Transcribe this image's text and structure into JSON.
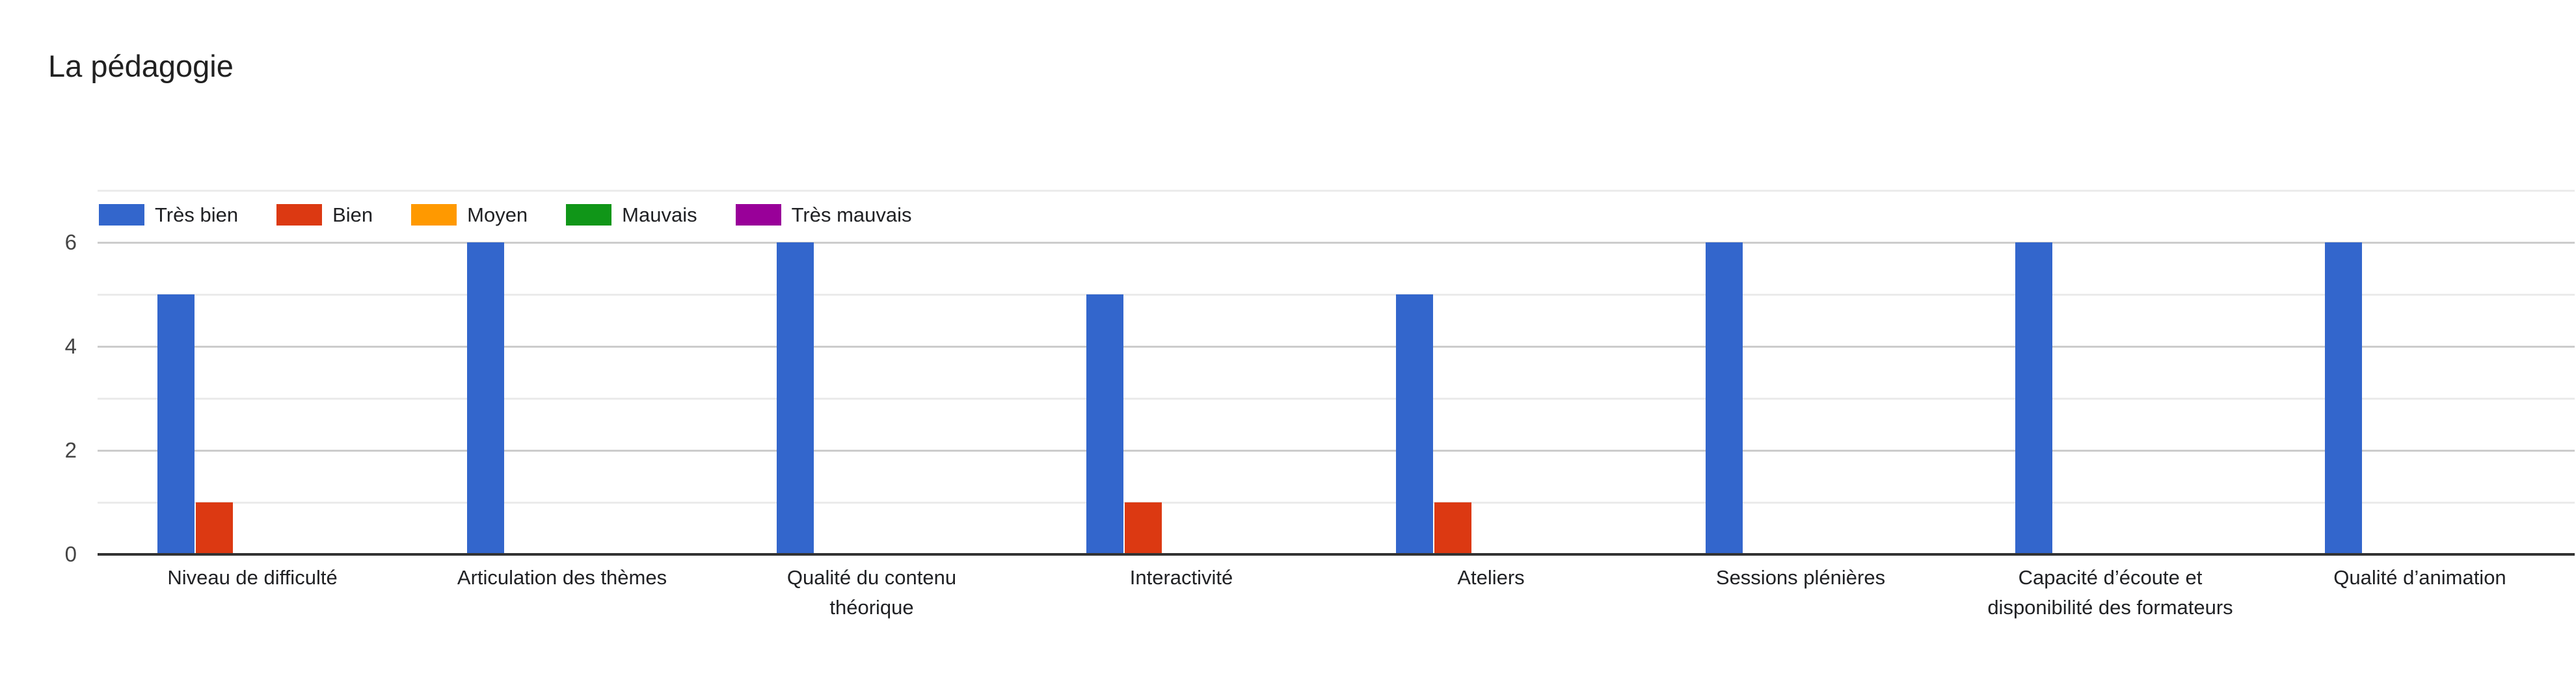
{
  "chart_data": {
    "type": "bar",
    "title": "La pédagogie",
    "categories": [
      "Niveau de difficulté",
      "Articulation des thèmes",
      "Qualité du contenu\nthéorique",
      "Interactivité",
      "Ateliers",
      "Sessions plénières",
      "Capacité d’écoute et\ndisponibilité des formateurs",
      "Qualité d’animation"
    ],
    "series": [
      {
        "name": "Très bien",
        "color": "#3366CC",
        "values": [
          5,
          6,
          6,
          5,
          5,
          6,
          6,
          6
        ]
      },
      {
        "name": "Bien",
        "color": "#DC3912",
        "values": [
          1,
          0,
          0,
          1,
          1,
          0,
          0,
          0
        ]
      },
      {
        "name": "Moyen",
        "color": "#FF9900",
        "values": [
          0,
          0,
          0,
          0,
          0,
          0,
          0,
          0
        ]
      },
      {
        "name": "Mauvais",
        "color": "#109618",
        "values": [
          0,
          0,
          0,
          0,
          0,
          0,
          0,
          0
        ]
      },
      {
        "name": "Très mauvais",
        "color": "#990099",
        "values": [
          0,
          0,
          0,
          0,
          0,
          0,
          0,
          0
        ]
      }
    ],
    "y_axis": {
      "min": 0,
      "max": 7,
      "tick_labels": [
        0,
        2,
        4,
        6
      ],
      "gridline_step": 1
    },
    "legend_position": "top-left",
    "grid": true,
    "axis_colors": {
      "major_gridline": "#cccccc",
      "minor_gridline": "#ebebeb",
      "baseline": "#333333",
      "tick_text": "#444444",
      "label_text": "#202124"
    }
  }
}
